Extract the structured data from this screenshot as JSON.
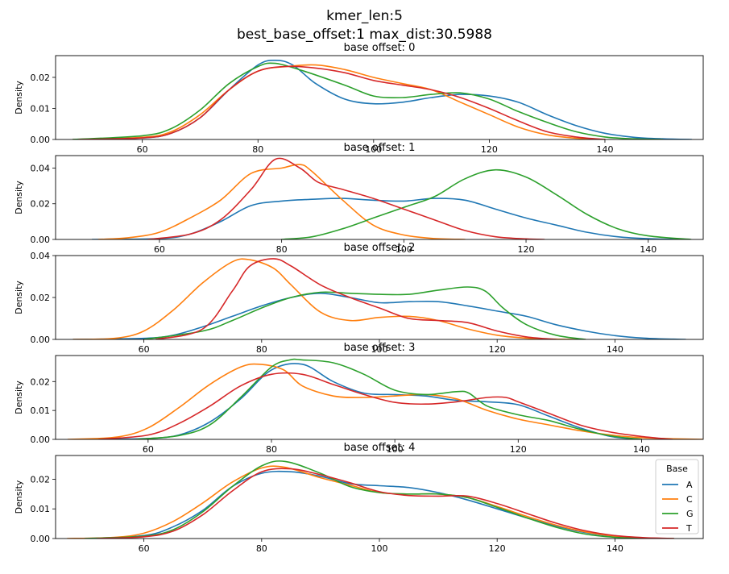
{
  "suptitle": {
    "line1": "kmer_len:5",
    "line2": "best_base_offset:1 max_dist:30.5988"
  },
  "colors": {
    "A": "#1f77b4",
    "C": "#ff7f0e",
    "G": "#2ca02c",
    "T": "#d62728"
  },
  "legend": {
    "title": "Base",
    "entries": [
      "A",
      "C",
      "G",
      "T"
    ],
    "placement": "upper-right of last subplot"
  },
  "chart_data": [
    {
      "type": "line",
      "title": "base offset: 0",
      "ylabel": "Density",
      "xlim": [
        45,
        157
      ],
      "ylim": [
        0,
        0.027
      ],
      "xticks": [
        60,
        80,
        100,
        120,
        140
      ],
      "yticks": [
        0.0,
        0.01,
        0.02
      ],
      "ytick_labels": [
        "0.00",
        "0.01",
        "0.02"
      ],
      "series": [
        {
          "name": "A",
          "x": [
            48,
            60,
            65,
            70,
            75,
            80,
            83,
            86,
            90,
            95,
            100,
            105,
            110,
            115,
            120,
            125,
            130,
            135,
            140,
            145,
            150,
            155
          ],
          "y": [
            0,
            0.0005,
            0.002,
            0.007,
            0.016,
            0.024,
            0.0255,
            0.024,
            0.018,
            0.013,
            0.0115,
            0.012,
            0.0135,
            0.0145,
            0.014,
            0.012,
            0.008,
            0.0045,
            0.002,
            0.0007,
            0.0002,
            0
          ]
        },
        {
          "name": "C",
          "x": [
            48,
            60,
            65,
            70,
            75,
            80,
            85,
            90,
            95,
            100,
            105,
            110,
            115,
            120,
            125,
            130,
            135,
            140
          ],
          "y": [
            0,
            0.0007,
            0.0025,
            0.008,
            0.016,
            0.022,
            0.0235,
            0.024,
            0.0225,
            0.02,
            0.018,
            0.016,
            0.012,
            0.008,
            0.004,
            0.0015,
            0.0004,
            0
          ]
        },
        {
          "name": "G",
          "x": [
            48,
            60,
            65,
            70,
            75,
            80,
            83,
            88,
            95,
            100,
            105,
            110,
            115,
            120,
            125,
            130,
            135,
            140,
            145,
            150
          ],
          "y": [
            0,
            0.0012,
            0.0035,
            0.0095,
            0.018,
            0.0235,
            0.0245,
            0.022,
            0.0175,
            0.014,
            0.0135,
            0.0145,
            0.015,
            0.013,
            0.009,
            0.0055,
            0.0025,
            0.0008,
            0.0002,
            0
          ]
        },
        {
          "name": "T",
          "x": [
            49,
            60,
            65,
            70,
            75,
            80,
            85,
            90,
            95,
            100,
            105,
            110,
            115,
            120,
            125,
            130,
            135,
            140
          ],
          "y": [
            0,
            0.0005,
            0.002,
            0.007,
            0.016,
            0.022,
            0.0235,
            0.023,
            0.0215,
            0.019,
            0.0175,
            0.016,
            0.0135,
            0.01,
            0.006,
            0.0025,
            0.0008,
            0
          ]
        }
      ]
    },
    {
      "type": "line",
      "title": "base offset: 1",
      "ylabel": "Density",
      "xlim": [
        43,
        149
      ],
      "ylim": [
        0,
        0.047
      ],
      "xticks": [
        60,
        80,
        100,
        120,
        140
      ],
      "yticks": [
        0.0,
        0.02,
        0.04
      ],
      "ytick_labels": [
        "0.00",
        "0.02",
        "0.04"
      ],
      "series": [
        {
          "name": "A",
          "x": [
            49,
            60,
            65,
            70,
            75,
            80,
            85,
            90,
            95,
            100,
            105,
            110,
            115,
            120,
            125,
            130,
            135,
            140,
            145
          ],
          "y": [
            0,
            0.0005,
            0.003,
            0.01,
            0.019,
            0.0215,
            0.0225,
            0.023,
            0.022,
            0.0215,
            0.023,
            0.022,
            0.017,
            0.012,
            0.008,
            0.004,
            0.0015,
            0.0004,
            0
          ]
        },
        {
          "name": "C",
          "x": [
            50,
            55,
            60,
            65,
            70,
            75,
            80,
            83,
            85,
            90,
            95,
            100,
            105,
            110
          ],
          "y": [
            0,
            0.001,
            0.004,
            0.012,
            0.022,
            0.037,
            0.04,
            0.042,
            0.038,
            0.022,
            0.008,
            0.0025,
            0.0005,
            0
          ]
        },
        {
          "name": "G",
          "x": [
            80,
            85,
            90,
            95,
            100,
            105,
            110,
            115,
            120,
            125,
            130,
            135,
            140,
            147
          ],
          "y": [
            0,
            0.0015,
            0.006,
            0.012,
            0.018,
            0.024,
            0.034,
            0.039,
            0.035,
            0.025,
            0.014,
            0.006,
            0.002,
            0
          ]
        },
        {
          "name": "T",
          "x": [
            58,
            65,
            70,
            75,
            79,
            83,
            86,
            90,
            95,
            100,
            105,
            110,
            115,
            120,
            123
          ],
          "y": [
            0,
            0.003,
            0.011,
            0.028,
            0.045,
            0.04,
            0.032,
            0.028,
            0.023,
            0.017,
            0.011,
            0.005,
            0.0015,
            0.0003,
            0
          ]
        }
      ]
    },
    {
      "type": "line",
      "title": "base offset: 2",
      "ylabel": "Density",
      "xlim": [
        45,
        155
      ],
      "ylim": [
        0,
        0.04
      ],
      "xticks": [
        60,
        80,
        100,
        120,
        140
      ],
      "yticks": [
        0.0,
        0.02,
        0.04
      ],
      "ytick_labels": [
        "0.00",
        "0.02",
        "0.04"
      ],
      "series": [
        {
          "name": "A",
          "x": [
            48,
            60,
            65,
            70,
            75,
            80,
            85,
            90,
            95,
            100,
            105,
            110,
            115,
            120,
            125,
            130,
            135,
            140,
            145,
            150,
            152
          ],
          "y": [
            0,
            0.0005,
            0.002,
            0.006,
            0.011,
            0.016,
            0.02,
            0.022,
            0.02,
            0.0175,
            0.018,
            0.018,
            0.016,
            0.0135,
            0.011,
            0.007,
            0.004,
            0.0018,
            0.0006,
            0.0001,
            0
          ]
        },
        {
          "name": "C",
          "x": [
            48,
            55,
            60,
            65,
            70,
            75,
            78,
            82,
            85,
            90,
            95,
            100,
            105,
            110,
            115,
            120,
            125,
            130,
            135
          ],
          "y": [
            0,
            0.0005,
            0.004,
            0.014,
            0.027,
            0.037,
            0.038,
            0.034,
            0.026,
            0.013,
            0.009,
            0.0105,
            0.011,
            0.009,
            0.005,
            0.002,
            0.0006,
            0.0001,
            0
          ]
        },
        {
          "name": "G",
          "x": [
            60,
            70,
            75,
            80,
            85,
            90,
            95,
            100,
            105,
            110,
            115,
            118,
            121,
            125,
            130,
            135
          ],
          "y": [
            0,
            0.004,
            0.009,
            0.015,
            0.02,
            0.0225,
            0.022,
            0.0215,
            0.0215,
            0.0235,
            0.025,
            0.023,
            0.015,
            0.007,
            0.002,
            0
          ]
        },
        {
          "name": "T",
          "x": [
            62,
            70,
            75,
            78,
            82,
            85,
            90,
            95,
            100,
            105,
            110,
            115,
            120,
            125,
            130
          ],
          "y": [
            0,
            0.005,
            0.023,
            0.035,
            0.0385,
            0.035,
            0.026,
            0.02,
            0.015,
            0.01,
            0.009,
            0.008,
            0.004,
            0.0012,
            0
          ]
        }
      ]
    },
    {
      "type": "line",
      "title": "base offset: 3",
      "ylabel": "Density",
      "xlim": [
        45,
        150
      ],
      "ylim": [
        0,
        0.029
      ],
      "xticks": [
        60,
        80,
        100,
        120,
        140
      ],
      "yticks": [
        0.0,
        0.01,
        0.02
      ],
      "ytick_labels": [
        "0.00",
        "0.01",
        "0.02"
      ],
      "series": [
        {
          "name": "A",
          "x": [
            52,
            60,
            65,
            70,
            75,
            80,
            85,
            90,
            95,
            100,
            105,
            110,
            115,
            120,
            125,
            130,
            135,
            140
          ],
          "y": [
            0,
            0.0003,
            0.0015,
            0.006,
            0.014,
            0.024,
            0.026,
            0.02,
            0.016,
            0.0155,
            0.015,
            0.0135,
            0.013,
            0.012,
            0.008,
            0.004,
            0.001,
            0
          ]
        },
        {
          "name": "C",
          "x": [
            47,
            55,
            60,
            65,
            70,
            75,
            78,
            82,
            85,
            90,
            95,
            100,
            105,
            110,
            115,
            120,
            125,
            130,
            135,
            140,
            145,
            150
          ],
          "y": [
            0,
            0.0008,
            0.004,
            0.011,
            0.019,
            0.025,
            0.026,
            0.024,
            0.0185,
            0.015,
            0.0145,
            0.015,
            0.0155,
            0.014,
            0.01,
            0.007,
            0.005,
            0.003,
            0.0015,
            0.0006,
            0.0002,
            0
          ]
        },
        {
          "name": "G",
          "x": [
            58,
            65,
            70,
            75,
            80,
            83,
            85,
            90,
            95,
            100,
            105,
            110,
            112,
            115,
            120,
            125,
            130,
            135,
            140
          ],
          "y": [
            0,
            0.0013,
            0.005,
            0.0145,
            0.025,
            0.0275,
            0.0275,
            0.0265,
            0.0225,
            0.017,
            0.0155,
            0.0165,
            0.016,
            0.0115,
            0.0085,
            0.0065,
            0.0035,
            0.0012,
            0
          ]
        },
        {
          "name": "T",
          "x": [
            52,
            60,
            65,
            70,
            75,
            80,
            85,
            90,
            95,
            100,
            105,
            110,
            115,
            118,
            120,
            125,
            130,
            135,
            140,
            145
          ],
          "y": [
            0,
            0.0015,
            0.0055,
            0.0115,
            0.0185,
            0.0225,
            0.0225,
            0.019,
            0.0155,
            0.0128,
            0.0122,
            0.013,
            0.0145,
            0.0145,
            0.013,
            0.009,
            0.005,
            0.0025,
            0.001,
            0
          ]
        }
      ]
    },
    {
      "type": "line",
      "title": "base offset: 4",
      "ylabel": "Density",
      "xlim": [
        45,
        155
      ],
      "ylim": [
        0,
        0.028
      ],
      "xticks": [
        60,
        80,
        100,
        120,
        140
      ],
      "yticks": [
        0.0,
        0.01,
        0.02
      ],
      "ytick_labels": [
        "0.00",
        "0.01",
        "0.02"
      ],
      "series": [
        {
          "name": "A",
          "x": [
            50,
            60,
            65,
            70,
            75,
            80,
            85,
            90,
            95,
            100,
            105,
            110,
            115,
            120,
            125,
            130,
            135,
            140,
            145,
            150
          ],
          "y": [
            0,
            0.001,
            0.004,
            0.0095,
            0.0175,
            0.022,
            0.0225,
            0.021,
            0.0185,
            0.0178,
            0.0172,
            0.0155,
            0.013,
            0.01,
            0.007,
            0.0042,
            0.002,
            0.0007,
            0.0002,
            0
          ]
        },
        {
          "name": "C",
          "x": [
            47,
            55,
            60,
            65,
            70,
            75,
            80,
            84,
            90,
            95,
            100,
            105,
            110,
            115,
            120,
            125,
            130,
            135,
            140,
            145,
            150
          ],
          "y": [
            0,
            0.0004,
            0.0018,
            0.0058,
            0.012,
            0.019,
            0.0238,
            0.024,
            0.0205,
            0.018,
            0.0155,
            0.015,
            0.015,
            0.0138,
            0.0108,
            0.0075,
            0.0045,
            0.0022,
            0.0008,
            0.0002,
            0
          ]
        },
        {
          "name": "G",
          "x": [
            50,
            60,
            65,
            70,
            75,
            80,
            84,
            90,
            95,
            100,
            105,
            110,
            115,
            120,
            125,
            130,
            135,
            140,
            145
          ],
          "y": [
            0,
            0.0008,
            0.003,
            0.009,
            0.0175,
            0.0245,
            0.026,
            0.022,
            0.0175,
            0.0155,
            0.015,
            0.015,
            0.0138,
            0.0105,
            0.007,
            0.0038,
            0.0015,
            0.0004,
            0
          ]
        },
        {
          "name": "T",
          "x": [
            52,
            60,
            65,
            70,
            75,
            80,
            85,
            90,
            95,
            100,
            105,
            110,
            115,
            120,
            125,
            130,
            135,
            140,
            145,
            150
          ],
          "y": [
            0,
            0.0006,
            0.0025,
            0.008,
            0.016,
            0.0225,
            0.0235,
            0.0215,
            0.0188,
            0.0158,
            0.0145,
            0.0143,
            0.0143,
            0.0118,
            0.0085,
            0.0052,
            0.0026,
            0.001,
            0.0003,
            0
          ]
        }
      ]
    }
  ]
}
